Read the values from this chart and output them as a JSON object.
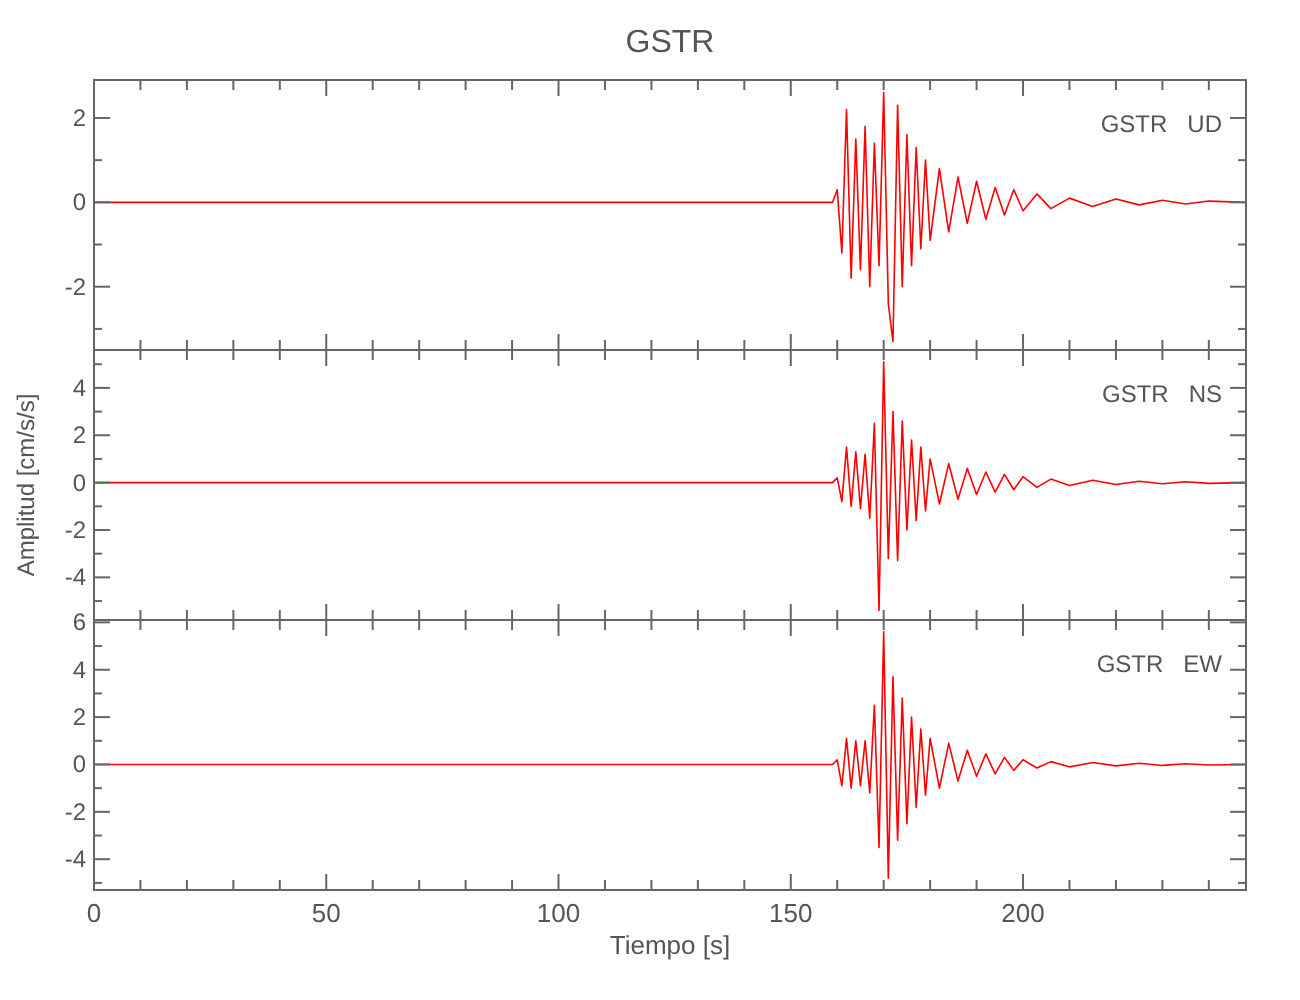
{
  "chart_data": [
    {
      "type": "line",
      "title": "GSTR",
      "annotations": [
        "GSTR   UD"
      ],
      "tick_labels": "y",
      "color": "#ff0000",
      "x": [
        0,
        100,
        159,
        160,
        161,
        162,
        163,
        164,
        165,
        166,
        167,
        168,
        169,
        170,
        171,
        172,
        173,
        174,
        175,
        176,
        177,
        178,
        179,
        180,
        182,
        184,
        186,
        188,
        190,
        192,
        194,
        196,
        198,
        200,
        203,
        206,
        210,
        215,
        220,
        225,
        230,
        235,
        240,
        248
      ],
      "values": [
        0,
        0,
        0,
        0.3,
        -1.2,
        2.2,
        -1.8,
        1.5,
        -1.6,
        1.8,
        -2.0,
        1.4,
        -1.5,
        2.6,
        -2.4,
        -3.3,
        2.3,
        -2.0,
        1.6,
        -1.5,
        1.3,
        -1.1,
        1.0,
        -0.9,
        0.8,
        -0.7,
        0.6,
        -0.5,
        0.5,
        -0.4,
        0.35,
        -0.3,
        0.3,
        -0.2,
        0.2,
        -0.15,
        0.1,
        -0.1,
        0.08,
        -0.06,
        0.05,
        -0.04,
        0.03,
        0
      ],
      "xlim": [
        0,
        248
      ],
      "ylim": [
        -3.5,
        2.9
      ],
      "xticks": [
        {
          "value": 0,
          "label": null
        },
        {
          "value": 10,
          "label": null
        },
        {
          "value": 20,
          "label": null
        },
        {
          "value": 30,
          "label": null
        },
        {
          "value": 40,
          "label": null
        },
        {
          "value": 50,
          "label": null
        },
        {
          "value": 60,
          "label": null
        },
        {
          "value": 70,
          "label": null
        },
        {
          "value": 80,
          "label": null
        },
        {
          "value": 90,
          "label": null
        },
        {
          "value": 100,
          "label": null
        },
        {
          "value": 110,
          "label": null
        },
        {
          "value": 120,
          "label": null
        },
        {
          "value": 130,
          "label": null
        },
        {
          "value": 140,
          "label": null
        },
        {
          "value": 150,
          "label": null
        },
        {
          "value": 160,
          "label": null
        },
        {
          "value": 170,
          "label": null
        },
        {
          "value": 180,
          "label": null
        },
        {
          "value": 190,
          "label": null
        },
        {
          "value": 200,
          "label": null
        },
        {
          "value": 210,
          "label": null
        },
        {
          "value": 220,
          "label": null
        },
        {
          "value": 230,
          "label": null
        },
        {
          "value": 240,
          "label": null
        }
      ],
      "yticks": [
        {
          "value": -3,
          "label": null
        },
        -2,
        {
          "value": -1,
          "label": null
        },
        0,
        {
          "value": 1,
          "label": null
        },
        2
      ]
    },
    {
      "type": "line",
      "ylabel": "Amplitud [cm/s/s]",
      "annotations": [
        "GSTR   NS"
      ],
      "tick_labels": "y",
      "color": "#ff0000",
      "x": [
        0,
        100,
        159,
        160,
        161,
        162,
        163,
        164,
        165,
        166,
        167,
        168,
        169,
        170,
        171,
        172,
        173,
        174,
        175,
        176,
        177,
        178,
        179,
        180,
        182,
        184,
        186,
        188,
        190,
        192,
        194,
        196,
        198,
        200,
        203,
        206,
        210,
        215,
        220,
        225,
        230,
        235,
        240,
        248
      ],
      "values": [
        0,
        0,
        0,
        0.2,
        -0.8,
        1.5,
        -1.0,
        1.3,
        -1.1,
        1.2,
        -1.5,
        2.5,
        -5.4,
        5.1,
        -3.2,
        3.0,
        -3.3,
        2.6,
        -2.0,
        1.8,
        -1.6,
        1.5,
        -1.2,
        1.0,
        -0.9,
        0.8,
        -0.7,
        0.6,
        -0.5,
        0.45,
        -0.4,
        0.35,
        -0.3,
        0.25,
        -0.2,
        0.15,
        -0.12,
        0.1,
        -0.08,
        0.06,
        -0.05,
        0.04,
        -0.03,
        0
      ],
      "xlim": [
        0,
        248
      ],
      "ylim": [
        -5.8,
        5.6
      ],
      "xticks": [
        {
          "value": 0,
          "label": null
        },
        {
          "value": 10,
          "label": null
        },
        {
          "value": 20,
          "label": null
        },
        {
          "value": 30,
          "label": null
        },
        {
          "value": 40,
          "label": null
        },
        {
          "value": 50,
          "label": null
        },
        {
          "value": 60,
          "label": null
        },
        {
          "value": 70,
          "label": null
        },
        {
          "value": 80,
          "label": null
        },
        {
          "value": 90,
          "label": null
        },
        {
          "value": 100,
          "label": null
        },
        {
          "value": 110,
          "label": null
        },
        {
          "value": 120,
          "label": null
        },
        {
          "value": 130,
          "label": null
        },
        {
          "value": 140,
          "label": null
        },
        {
          "value": 150,
          "label": null
        },
        {
          "value": 160,
          "label": null
        },
        {
          "value": 170,
          "label": null
        },
        {
          "value": 180,
          "label": null
        },
        {
          "value": 190,
          "label": null
        },
        {
          "value": 200,
          "label": null
        },
        {
          "value": 210,
          "label": null
        },
        {
          "value": 220,
          "label": null
        },
        {
          "value": 230,
          "label": null
        },
        {
          "value": 240,
          "label": null
        }
      ],
      "yticks": [
        {
          "value": -5,
          "label": null
        },
        -4,
        {
          "value": -3,
          "label": null
        },
        -2,
        {
          "value": -1,
          "label": null
        },
        0,
        {
          "value": 1,
          "label": null
        },
        2,
        {
          "value": 3,
          "label": null
        },
        4,
        {
          "value": 5,
          "label": null
        }
      ]
    },
    {
      "type": "line",
      "xlabel": "Tiempo [s]",
      "annotations": [
        "GSTR   EW"
      ],
      "color": "#ff0000",
      "x": [
        0,
        100,
        159,
        160,
        161,
        162,
        163,
        164,
        165,
        166,
        167,
        168,
        169,
        170,
        171,
        172,
        173,
        174,
        175,
        176,
        177,
        178,
        179,
        180,
        182,
        184,
        186,
        188,
        190,
        192,
        194,
        196,
        198,
        200,
        203,
        206,
        210,
        215,
        220,
        225,
        230,
        235,
        240,
        248
      ],
      "values": [
        0,
        0,
        0,
        0.2,
        -0.9,
        1.1,
        -1.0,
        1.0,
        -0.9,
        1.0,
        -1.2,
        2.5,
        -3.5,
        5.6,
        -4.8,
        3.7,
        -3.2,
        2.8,
        -2.5,
        2.0,
        -1.8,
        1.5,
        -1.3,
        1.1,
        -1.0,
        0.9,
        -0.7,
        0.6,
        -0.5,
        0.45,
        -0.4,
        0.3,
        -0.25,
        0.2,
        -0.15,
        0.12,
        -0.1,
        0.08,
        -0.06,
        0.05,
        -0.04,
        0.03,
        -0.02,
        0
      ],
      "xlim": [
        0,
        248
      ],
      "ylim": [
        -5.3,
        6.1
      ],
      "xticks": [
        0,
        {
          "value": 10,
          "label": null
        },
        {
          "value": 20,
          "label": null
        },
        {
          "value": 30,
          "label": null
        },
        {
          "value": 40,
          "label": null
        },
        50,
        {
          "value": 60,
          "label": null
        },
        {
          "value": 70,
          "label": null
        },
        {
          "value": 80,
          "label": null
        },
        {
          "value": 90,
          "label": null
        },
        100,
        {
          "value": 110,
          "label": null
        },
        {
          "value": 120,
          "label": null
        },
        {
          "value": 130,
          "label": null
        },
        {
          "value": 140,
          "label": null
        },
        150,
        {
          "value": 160,
          "label": null
        },
        {
          "value": 170,
          "label": null
        },
        {
          "value": 180,
          "label": null
        },
        {
          "value": 190,
          "label": null
        },
        200,
        {
          "value": 210,
          "label": null
        },
        {
          "value": 220,
          "label": null
        },
        {
          "value": 230,
          "label": null
        },
        {
          "value": 240,
          "label": null
        }
      ],
      "yticks": [
        {
          "value": -5,
          "label": null
        },
        -4,
        {
          "value": -3,
          "label": null
        },
        -2,
        {
          "value": -1,
          "label": null
        },
        0,
        {
          "value": 1,
          "label": null
        },
        2,
        {
          "value": 3,
          "label": null
        },
        4,
        {
          "value": 5,
          "label": null
        },
        6
      ]
    }
  ]
}
